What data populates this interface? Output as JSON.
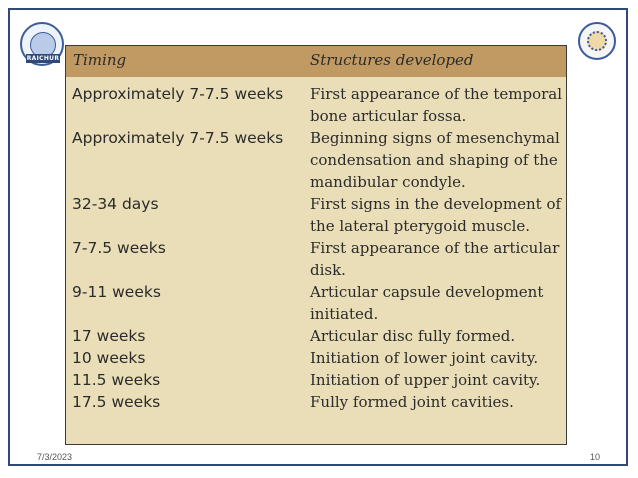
{
  "slide": {
    "logo_left_text": "RAICHUR",
    "date": "7/3/2023",
    "page_number": "10"
  },
  "table": {
    "headers": {
      "timing": "Timing",
      "structures": "Structures developed"
    },
    "rows": [
      {
        "timing": "Approximately 7-7.5 weeks",
        "structure": "First appearance of the temporal bone articular fossa."
      },
      {
        "timing": "Approximately 7-7.5 weeks",
        "structure": "Beginning signs of mesenchymal condensation and shaping of the mandibular condyle."
      },
      {
        "timing": "32-34 days",
        "structure": "First signs in the development of the lateral pterygoid muscle."
      },
      {
        "timing": "7-7.5 weeks",
        "structure": "First appearance of the articular disk."
      },
      {
        "timing": "9-11 weeks",
        "structure": "Articular capsule development initiated."
      },
      {
        "timing": "17 weeks",
        "structure": "Articular disc fully formed."
      },
      {
        "timing": "10 weeks",
        "structure": "Initiation of lower joint cavity."
      },
      {
        "timing": "11.5 weeks",
        "structure": "Initiation of upper joint cavity."
      },
      {
        "timing": "17.5 weeks",
        "structure": "Fully formed joint cavities."
      }
    ]
  }
}
